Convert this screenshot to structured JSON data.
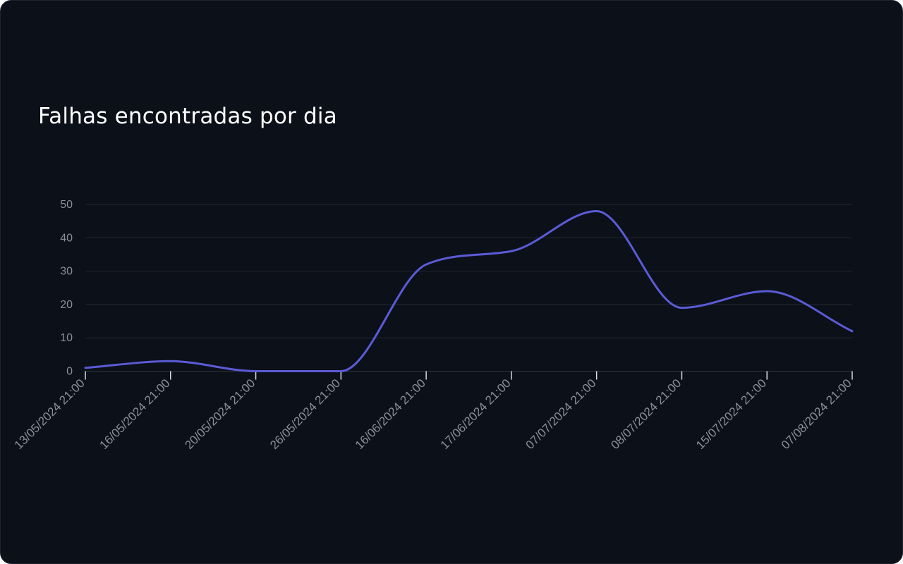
{
  "card": {
    "title": "Falhas encontradas por dia"
  },
  "chart_data": {
    "type": "line",
    "title": "Falhas encontradas por dia",
    "xlabel": "",
    "ylabel": "",
    "categories": [
      "13/05/2024 21:00",
      "16/05/2024 21:00",
      "20/05/2024 21:00",
      "26/05/2024 21:00",
      "16/06/2024 21:00",
      "17/06/2024 21:00",
      "07/07/2024 21:00",
      "08/07/2024 21:00",
      "15/07/2024 21:00",
      "07/08/2024 21:00"
    ],
    "series": [
      {
        "values": [
          1,
          3,
          0,
          0,
          32,
          36,
          48,
          19,
          24,
          12
        ],
        "color": "#5b5bd6"
      }
    ],
    "ylim": [
      0,
      50
    ],
    "yticks": [
      0,
      10,
      20,
      30,
      40,
      50
    ],
    "grid": true,
    "legend": "none",
    "colors": {
      "background": "#0c1018",
      "grid": "#232733",
      "axis": "#2e3340",
      "tick_label": "#8b8f98",
      "line": "#5b5bd6"
    }
  }
}
